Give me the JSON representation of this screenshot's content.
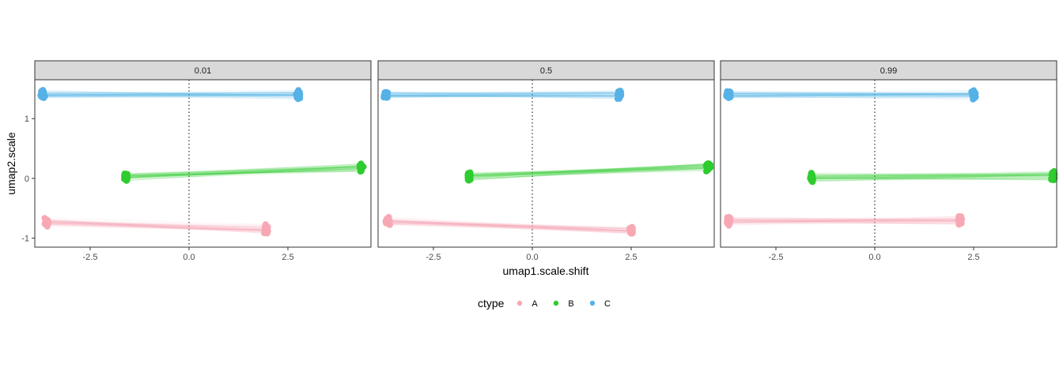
{
  "chart_data": {
    "type": "scatter",
    "xlabel": "umap1.scale.shift",
    "ylabel": "umap2.scale",
    "xlim": [
      -3.9,
      4.6
    ],
    "ylim": [
      -1.15,
      1.65
    ],
    "x_ticks": [
      -2.5,
      0.0,
      2.5
    ],
    "x_tick_labels": [
      "-2.5",
      "0.0",
      "2.5"
    ],
    "y_ticks": [
      -1,
      0,
      1
    ],
    "y_tick_labels": [
      "-1",
      "0",
      "1"
    ],
    "vline_x": 0,
    "grid": false,
    "legend": {
      "title": "ctype",
      "position": "bottom",
      "entries": [
        {
          "label": "A",
          "color": "#F8A8B4"
        },
        {
          "label": "B",
          "color": "#2ECC2E"
        },
        {
          "label": "C",
          "color": "#56B1E6"
        }
      ]
    },
    "panels": [
      {
        "label": "0.01",
        "clusters": [
          {
            "ctype": "A",
            "from": [
              -3.6,
              -0.72
            ],
            "to": [
              1.95,
              -0.85
            ]
          },
          {
            "ctype": "B",
            "from": [
              -1.6,
              0.02
            ],
            "to": [
              4.35,
              0.18
            ]
          },
          {
            "ctype": "C",
            "from": [
              -3.7,
              1.4
            ],
            "to": [
              2.75,
              1.4
            ]
          }
        ]
      },
      {
        "label": "0.5",
        "clusters": [
          {
            "ctype": "A",
            "from": [
              -3.65,
              -0.72
            ],
            "to": [
              2.5,
              -0.88
            ]
          },
          {
            "ctype": "B",
            "from": [
              -1.6,
              0.03
            ],
            "to": [
              4.45,
              0.2
            ]
          },
          {
            "ctype": "C",
            "from": [
              -3.7,
              1.4
            ],
            "to": [
              2.2,
              1.4
            ]
          }
        ]
      },
      {
        "label": "0.99",
        "clusters": [
          {
            "ctype": "A",
            "from": [
              -3.7,
              -0.72
            ],
            "to": [
              2.15,
              -0.7
            ]
          },
          {
            "ctype": "B",
            "from": [
              -1.6,
              0.02
            ],
            "to": [
              4.5,
              0.04
            ]
          },
          {
            "ctype": "C",
            "from": [
              -3.7,
              1.4
            ],
            "to": [
              2.5,
              1.4
            ]
          }
        ]
      }
    ]
  }
}
